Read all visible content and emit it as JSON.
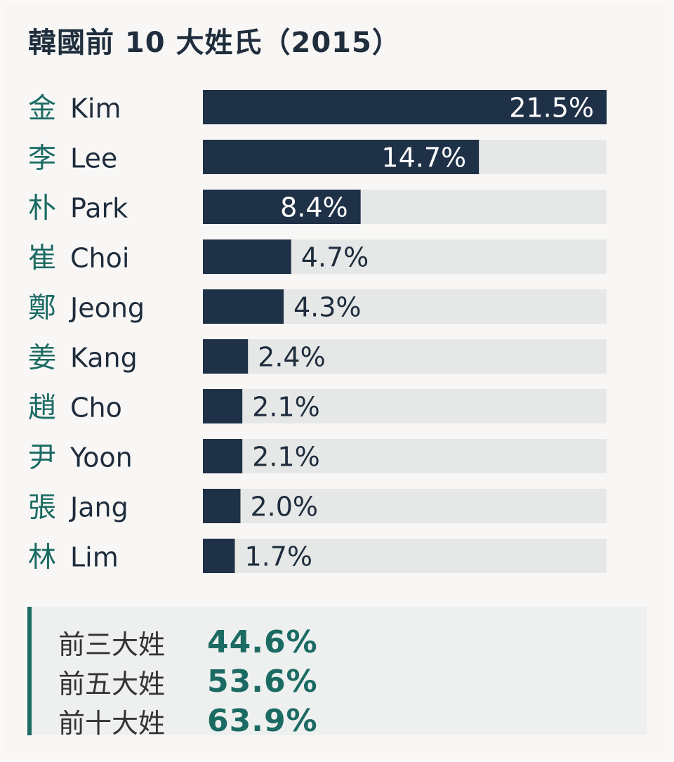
{
  "title": "韓國前 10 大姓氏（2015）",
  "colors": {
    "bar": "#1f3147",
    "track": "#e6e8e7",
    "hanja": "#1b6b63",
    "roman": "#1f2d3d",
    "label_inside": "#ffffff",
    "label_outside": "#1f2d3d",
    "accent": "#1b6b63"
  },
  "chart_data": {
    "type": "bar",
    "orientation": "horizontal",
    "title": "韓國前 10 大姓氏（2015）",
    "categories": [
      {
        "hanja": "金",
        "roman": "Kim"
      },
      {
        "hanja": "李",
        "roman": "Lee"
      },
      {
        "hanja": "朴",
        "roman": "Park"
      },
      {
        "hanja": "崔",
        "roman": "Choi"
      },
      {
        "hanja": "鄭",
        "roman": "Jeong"
      },
      {
        "hanja": "姜",
        "roman": "Kang"
      },
      {
        "hanja": "趙",
        "roman": "Cho"
      },
      {
        "hanja": "尹",
        "roman": "Yoon"
      },
      {
        "hanja": "張",
        "roman": "Jang"
      },
      {
        "hanja": "林",
        "roman": "Lim"
      }
    ],
    "values": [
      21.5,
      14.7,
      8.4,
      4.7,
      4.3,
      2.4,
      2.1,
      2.1,
      2.0,
      1.7
    ],
    "labels": [
      "21.5%",
      "14.7%",
      "8.4%",
      "4.7%",
      "4.3%",
      "2.4%",
      "2.1%",
      "2.1%",
      "2.0%",
      "1.7%"
    ],
    "xlim": [
      0,
      21.5
    ],
    "grid": false,
    "legend": "none"
  },
  "summary": [
    {
      "label": "前三大姓",
      "value": "44.6%"
    },
    {
      "label": "前五大姓",
      "value": "53.6%"
    },
    {
      "label": "前十大姓",
      "value": "63.9%"
    }
  ]
}
